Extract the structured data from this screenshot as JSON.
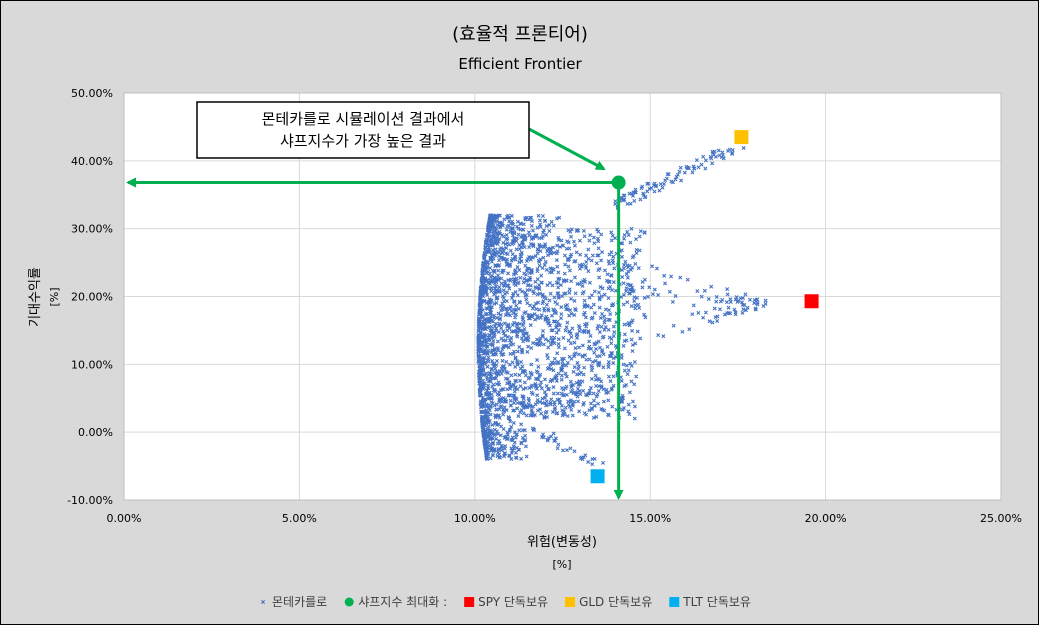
{
  "chart_data": {
    "type": "scatter",
    "title": "(효율적 프론티어)",
    "subtitle": "Efficient Frontier",
    "xlabel": "위험(변동성)",
    "xunit": "[%]",
    "ylabel": "기대수익률",
    "yunit": "[%]",
    "xlim": [
      0,
      0.25
    ],
    "ylim": [
      -0.1,
      0.5
    ],
    "x_ticks": [
      0,
      0.05,
      0.1,
      0.15,
      0.2,
      0.25
    ],
    "x_tick_labels": [
      "0.00%",
      "5.00%",
      "10.00%",
      "15.00%",
      "20.00%",
      "25.00%"
    ],
    "y_ticks": [
      -0.1,
      0.0,
      0.1,
      0.2,
      0.3,
      0.4,
      0.5
    ],
    "y_tick_labels": [
      "-10.00%",
      "0.00%",
      "10.00%",
      "20.00%",
      "30.00%",
      "40.00%",
      "50.00%"
    ],
    "grid": true,
    "legend_position": "bottom",
    "annotation": {
      "line1": "몬테카를로 시뮬레이션 결과에서",
      "line2": "샤프지수가 가장 높은 결과"
    },
    "series": [
      {
        "name": "몬테카를로",
        "marker": "x",
        "color": "#4472c4",
        "description": "Monte Carlo simulated portfolios; dense region bounded by efficient frontier from approx (0.135,-0.055) through (0.101,0.125) to (0.17,0.42)"
      },
      {
        "name": "샤프지수 최대화 :",
        "marker": "circle",
        "color": "#00b050",
        "x": [
          0.141
        ],
        "y": [
          0.368
        ]
      },
      {
        "name": "SPY 단독보유",
        "marker": "square",
        "color": "#ff0000",
        "x": [
          0.196
        ],
        "y": [
          0.193
        ]
      },
      {
        "name": "GLD 단독보유",
        "marker": "square",
        "color": "#ffc000",
        "x": [
          0.176
        ],
        "y": [
          0.435
        ]
      },
      {
        "name": "TLT 단독보유",
        "marker": "square",
        "color": "#00b0f0",
        "x": [
          0.135
        ],
        "y": [
          -0.065
        ]
      }
    ]
  }
}
